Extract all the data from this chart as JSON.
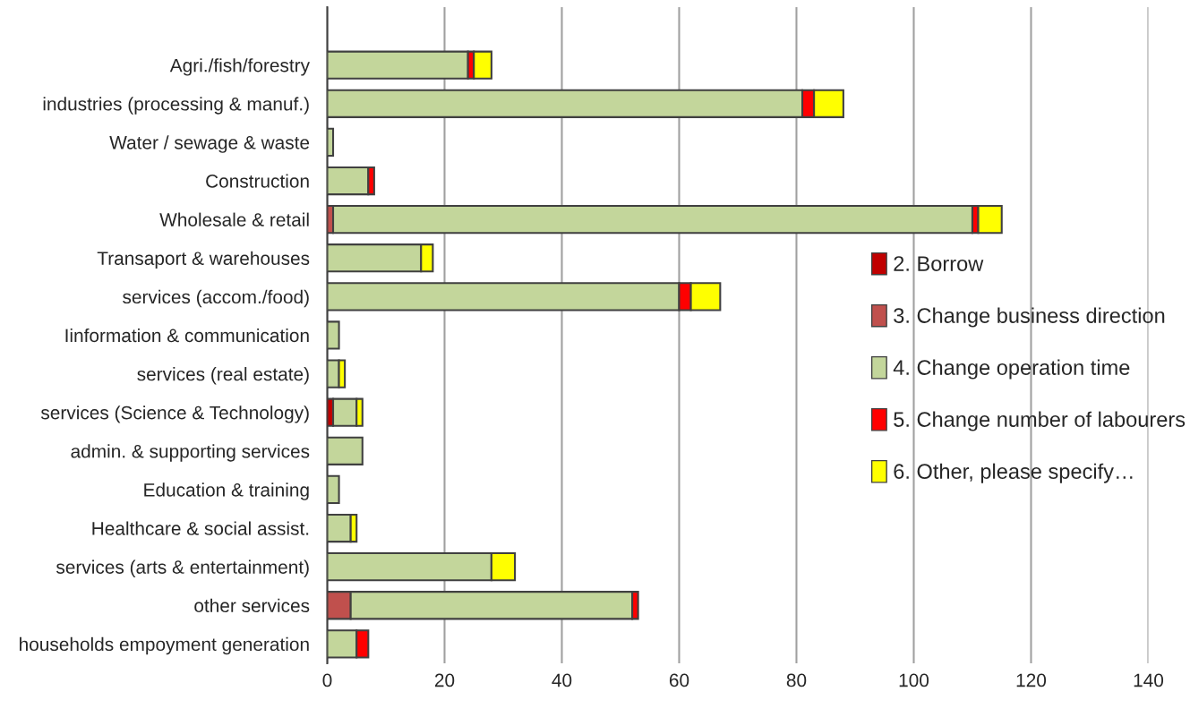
{
  "chart_data": {
    "type": "bar",
    "orientation": "horizontal",
    "stacked": true,
    "categories": [
      null,
      "Agri./fish/forestry",
      "industries (processing & manuf.)",
      "Water / sewage & waste",
      "Construction",
      "Wholesale & retail",
      "Transaport & warehouses",
      "services (accom./food)",
      "Iinformation & communication",
      "services (real estate)",
      "services (Science & Technology)",
      "admin. & supporting services",
      "Education & training",
      "Healthcare & social assist.",
      "services (arts & entertainment)",
      "other services",
      "households empoyment generation"
    ],
    "series": [
      {
        "name": "2. Borrow",
        "color": "#c00000",
        "values": [
          null,
          null,
          null,
          null,
          null,
          null,
          null,
          null,
          null,
          null,
          1,
          null,
          null,
          null,
          null,
          null,
          null
        ]
      },
      {
        "name": "3. Change business direction",
        "color": "#c0504d",
        "values": [
          null,
          null,
          null,
          null,
          null,
          1,
          null,
          null,
          null,
          null,
          null,
          null,
          null,
          null,
          null,
          4,
          null
        ]
      },
      {
        "name": "4. Change operation time",
        "color": "#c3d69b",
        "values": [
          null,
          24,
          81,
          1,
          7,
          109,
          16,
          60,
          2,
          2,
          4,
          6,
          2,
          4,
          28,
          48,
          5
        ]
      },
      {
        "name": "5. Change number of labourers",
        "color": "#ff0000",
        "values": [
          null,
          1,
          2,
          null,
          1,
          1,
          null,
          2,
          null,
          null,
          null,
          null,
          null,
          null,
          null,
          1,
          2
        ]
      },
      {
        "name": "6. Other, please specify…",
        "color": "#ffff00",
        "values": [
          null,
          3,
          5,
          null,
          null,
          4,
          2,
          5,
          null,
          1,
          1,
          null,
          null,
          1,
          4,
          null,
          null
        ]
      }
    ],
    "xlim": [
      0,
      140
    ],
    "xticks": [
      0,
      20,
      40,
      60,
      80,
      100,
      120,
      140
    ],
    "grid": "x",
    "legend": "right"
  }
}
